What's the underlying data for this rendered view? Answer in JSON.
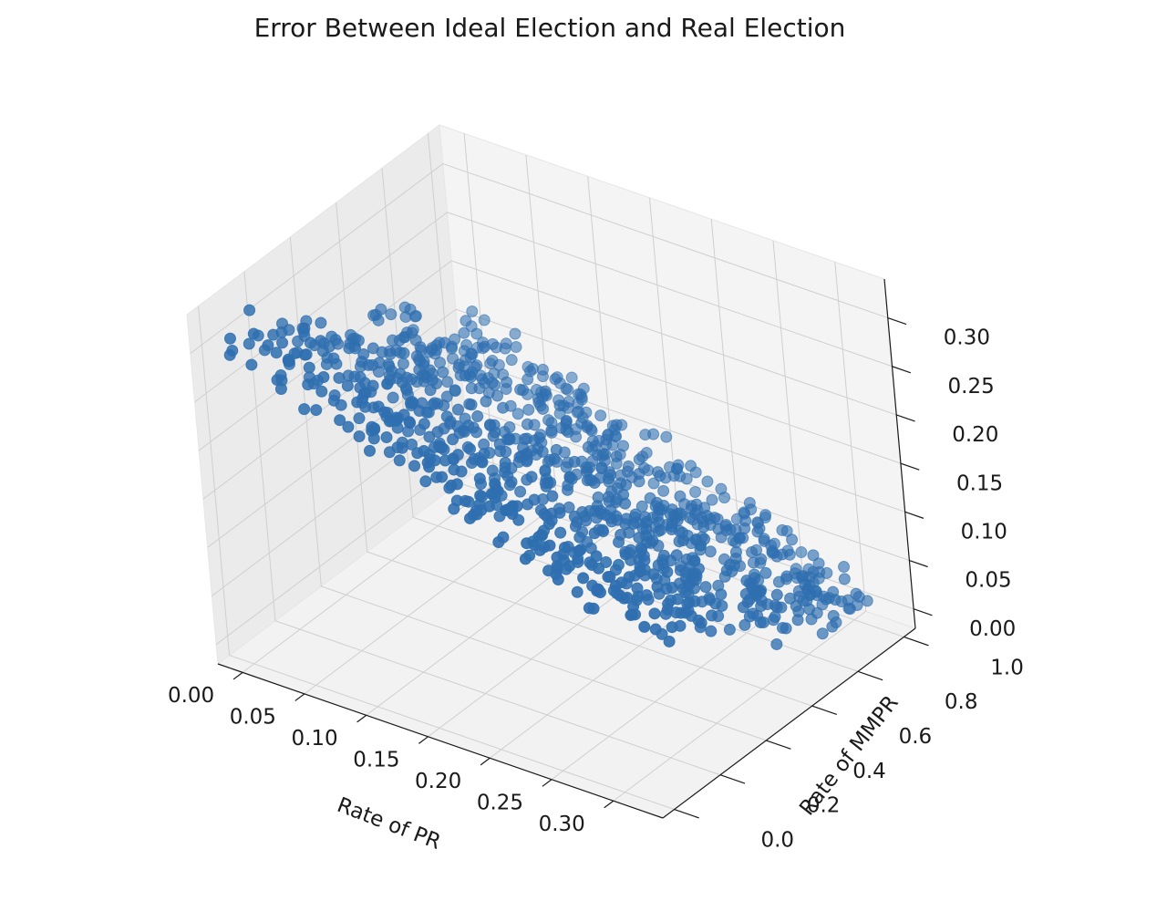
{
  "chart_data": {
    "type": "scatter",
    "projection": "3d",
    "title": "Error Between Ideal Election and Real Election",
    "xlabel": "Rate of PR",
    "ylabel": "Rate of MMPR",
    "zlabel": "",
    "xlim": [
      -0.02,
      0.34
    ],
    "ylim": [
      -0.05,
      1.05
    ],
    "zlim": [
      -0.02,
      0.34
    ],
    "xticks": [
      "0.00",
      "0.05",
      "0.10",
      "0.15",
      "0.20",
      "0.25",
      "0.30"
    ],
    "yticks": [
      "0.0",
      "0.2",
      "0.4",
      "0.6",
      "0.8",
      "1.0"
    ],
    "zticks": [
      "0.00",
      "0.05",
      "0.10",
      "0.15",
      "0.20",
      "0.25",
      "0.30"
    ],
    "grid": true,
    "point_color": "#2f6fb0",
    "pane_color": "#f2f2f2",
    "point_count": 1000,
    "approximate_relation": "error ≈ 0.32 - 0.32 × (0.5·PR/0.33 + 0.5·MMPR); points sampled with PR in [0, 0.33], MMPR in [0, 1]"
  }
}
